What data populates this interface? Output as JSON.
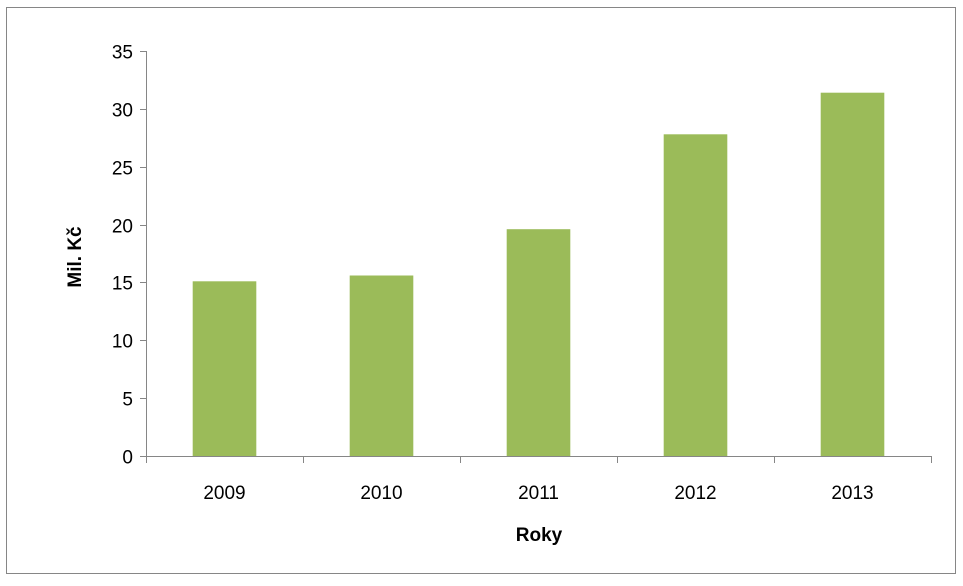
{
  "chart_data": {
    "type": "bar",
    "categories": [
      "2009",
      "2010",
      "2011",
      "2012",
      "2013"
    ],
    "values": [
      15.1,
      15.6,
      19.6,
      27.8,
      31.4
    ],
    "xlabel": "Roky",
    "ylabel": "Mil. Kč",
    "ylim": [
      0,
      35
    ],
    "yticks": [
      "0",
      "5",
      "10",
      "15",
      "20",
      "25",
      "30",
      "35"
    ],
    "bar_color": "#9BBB59",
    "axis_color": "#868686",
    "grid": false,
    "legend": false
  }
}
